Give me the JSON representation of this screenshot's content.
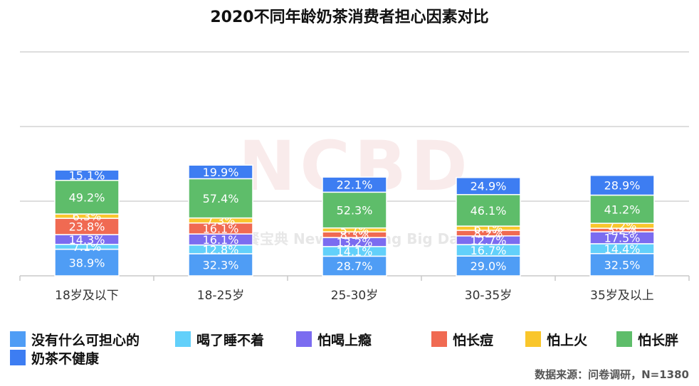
{
  "title": "2020不同年龄奶茶消费者担心因素对比",
  "source": "数据来源：问卷调研，N=1380",
  "watermark": {
    "logo": "NCBD",
    "text": "餐宝典 New Catering Big Data"
  },
  "legend": [
    {
      "label": "没有什么可担心的",
      "color": "#4f9df5"
    },
    {
      "label": "喝了睡不着",
      "color": "#62d0fa"
    },
    {
      "label": "怕喝上瘾",
      "color": "#7b6cf0"
    },
    {
      "label": "怕长痘",
      "color": "#f06a52"
    },
    {
      "label": "怕上火",
      "color": "#f9c62b"
    },
    {
      "label": "怕长胖",
      "color": "#5ebd6a"
    },
    {
      "label": "奶茶不健康",
      "color": "#3d7df2"
    }
  ],
  "chart_data": {
    "type": "bar",
    "stacked": true,
    "title": "2020不同年龄奶茶消费者担心因素对比",
    "categories": [
      "18岁及以下",
      "18-25岁",
      "25-30岁",
      "30-35岁",
      "35岁及以上"
    ],
    "value_format": "percent",
    "grid": true,
    "legend_position": "bottom",
    "series": [
      {
        "name": "没有什么可担心的",
        "color": "#4f9df5",
        "values": [
          38.9,
          32.3,
          28.7,
          29.0,
          32.5
        ]
      },
      {
        "name": "喝了睡不着",
        "color": "#62d0fa",
        "values": [
          7.1,
          12.8,
          14.1,
          16.7,
          14.4
        ]
      },
      {
        "name": "怕喝上瘾",
        "color": "#7b6cf0",
        "values": [
          14.3,
          16.1,
          13.2,
          12.7,
          17.5
        ]
      },
      {
        "name": "怕长痘",
        "color": "#f06a52",
        "values": [
          23.8,
          16.1,
          8.3,
          8.2,
          5.2
        ]
      },
      {
        "name": "怕上火",
        "color": "#f9c62b",
        "values": [
          6.3,
          7.3,
          5.7,
          6.1,
          7.2
        ]
      },
      {
        "name": "怕长胖",
        "color": "#5ebd6a",
        "values": [
          49.2,
          57.4,
          52.3,
          46.1,
          41.2
        ]
      },
      {
        "name": "奶茶不健康",
        "color": "#3d7df2",
        "values": [
          15.1,
          19.9,
          22.1,
          24.9,
          28.9
        ]
      }
    ],
    "value_labels": [
      [
        "38.9%",
        "32.3%",
        "28.7%",
        "29.0%",
        "32.5%"
      ],
      [
        "7.1%",
        "12.8%",
        "14.1%",
        "16.7%",
        "14.4%"
      ],
      [
        "14.3%",
        "16.1%",
        "13.2%",
        "12.7%",
        "17.5%"
      ],
      [
        "23.8%",
        "16.1%",
        "8.3%",
        "8.2%",
        "5.2%"
      ],
      [
        "6.3%",
        "7.3%",
        "5.7%",
        "6.1%",
        "7.2%"
      ],
      [
        "49.2%",
        "57.4%",
        "52.3%",
        "46.1%",
        "41.2%"
      ],
      [
        "15.1%",
        "19.9%",
        "22.1%",
        "24.9%",
        "28.9%"
      ]
    ]
  }
}
